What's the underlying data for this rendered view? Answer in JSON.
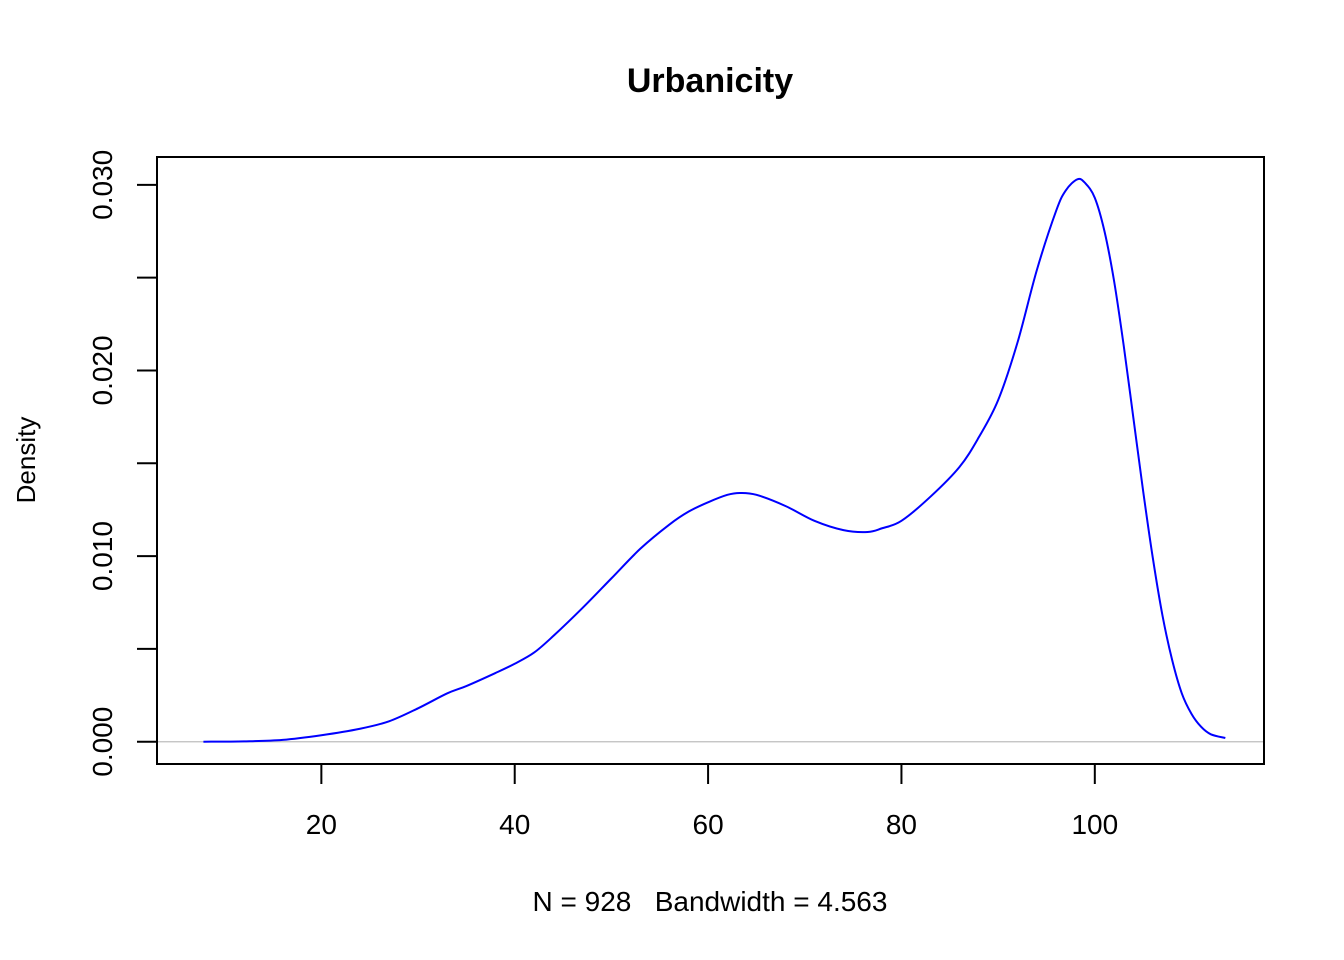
{
  "chart_data": {
    "type": "line",
    "title": "Urbanicity",
    "xlabel": "N = 928   Bandwidth = 4.563",
    "ylabel": "Density",
    "xlim": [
      3.0,
      117.5
    ],
    "ylim": [
      -0.0012,
      0.0315
    ],
    "x_ticks": [
      20,
      40,
      60,
      80,
      100
    ],
    "x_tick_labels": [
      "20",
      "40",
      "60",
      "80",
      "100"
    ],
    "y_ticks": [
      0.0,
      0.005,
      0.01,
      0.015,
      0.02,
      0.025,
      0.03
    ],
    "y_tick_labels": [
      "0.000",
      "",
      "0.010",
      "",
      "0.020",
      "",
      "0.030"
    ],
    "zero_line": true,
    "grid": false,
    "colors": {
      "line": "#0000ff",
      "zero_line": "#bebebe",
      "axis": "#000000"
    },
    "series": [
      {
        "x": [
          7.8,
          12,
          16,
          20,
          24,
          27,
          30,
          33,
          35,
          38,
          40,
          42,
          44,
          47,
          50,
          53,
          56,
          58,
          60,
          62,
          63.3,
          65,
          68,
          71,
          74,
          76.5,
          78,
          80,
          83,
          86,
          88,
          90,
          92,
          94,
          96,
          97,
          98.2,
          99,
          100,
          101,
          102,
          103,
          104,
          105,
          106,
          107,
          108,
          109,
          110,
          111,
          112,
          113.5
        ],
        "y": [
          0.0,
          2e-05,
          0.0001,
          0.00035,
          0.0007,
          0.0011,
          0.0018,
          0.0026,
          0.003,
          0.0037,
          0.0042,
          0.0048,
          0.0057,
          0.0072,
          0.0088,
          0.0104,
          0.0117,
          0.0124,
          0.0129,
          0.0133,
          0.0134,
          0.0133,
          0.0127,
          0.0119,
          0.0114,
          0.0113,
          0.0115,
          0.0119,
          0.0132,
          0.0148,
          0.0164,
          0.0184,
          0.0215,
          0.0254,
          0.0286,
          0.0297,
          0.0303,
          0.0301,
          0.0293,
          0.0275,
          0.0248,
          0.0213,
          0.0174,
          0.0135,
          0.0099,
          0.0068,
          0.0044,
          0.0026,
          0.0015,
          0.0008,
          0.0004,
          0.0002
        ]
      }
    ]
  }
}
